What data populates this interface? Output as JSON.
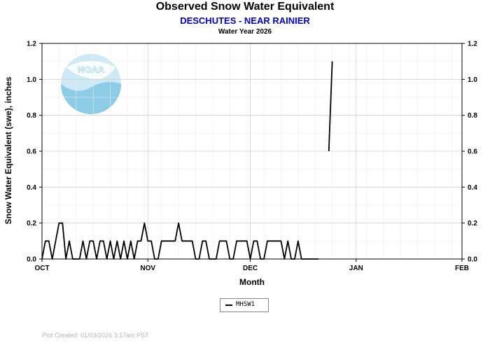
{
  "header": {
    "title": "Observed Snow Water Equivalent",
    "subtitle": "DESCHUTES - NEAR RAINIER",
    "subsubtitle": "Water Year 2026",
    "subtitle_color": "#0000cc"
  },
  "logo": {
    "text": "NOAA",
    "colors": {
      "light": "#cde9f5",
      "mid": "#8ccce6"
    }
  },
  "footer": {
    "text": "Plot Created: 01/03/2026 3:17am PST"
  },
  "chart_data": {
    "type": "line",
    "title": "Observed Snow Water Equivalent",
    "subtitle": "DESCHUTES - NEAR RAINIER",
    "xlabel": "Month",
    "ylabel": "Snow Water Equivalent (swe),  inches",
    "xlim": [
      "2025-10-01",
      "2026-02-01"
    ],
    "ylim": [
      0,
      1.2
    ],
    "x_ticks": [
      {
        "date": "2025-10-01",
        "label": "OCT"
      },
      {
        "date": "2025-11-01",
        "label": "NOV"
      },
      {
        "date": "2025-12-01",
        "label": "DEC"
      },
      {
        "date": "2026-01-01",
        "label": "JAN"
      },
      {
        "date": "2026-02-01",
        "label": "FEB"
      }
    ],
    "y_ticks": [
      "0.0",
      "0.2",
      "0.4",
      "0.6",
      "0.8",
      "1.0",
      "1.2"
    ],
    "grid": true,
    "legend": {
      "position": "bottom-center"
    },
    "series": [
      {
        "name": "MHSW1",
        "color": "#000000",
        "segments": [
          {
            "x": [
              "2025-10-01",
              "2025-10-02",
              "2025-10-03",
              "2025-10-04",
              "2025-10-05",
              "2025-10-06",
              "2025-10-07",
              "2025-10-08",
              "2025-10-09",
              "2025-10-10",
              "2025-10-11",
              "2025-10-12",
              "2025-10-13",
              "2025-10-14",
              "2025-10-15",
              "2025-10-16",
              "2025-10-17",
              "2025-10-18",
              "2025-10-19",
              "2025-10-20",
              "2025-10-21",
              "2025-10-22",
              "2025-10-23",
              "2025-10-24",
              "2025-10-25",
              "2025-10-26",
              "2025-10-27",
              "2025-10-28",
              "2025-10-29",
              "2025-10-30",
              "2025-10-31",
              "2025-11-01",
              "2025-11-02",
              "2025-11-03",
              "2025-11-04",
              "2025-11-05",
              "2025-11-06",
              "2025-11-07",
              "2025-11-08",
              "2025-11-09",
              "2025-11-10",
              "2025-11-11",
              "2025-11-12",
              "2025-11-13",
              "2025-11-14",
              "2025-11-15",
              "2025-11-16",
              "2025-11-17",
              "2025-11-18",
              "2025-11-19",
              "2025-11-20",
              "2025-11-21",
              "2025-11-22",
              "2025-11-23",
              "2025-11-24",
              "2025-11-25",
              "2025-11-26",
              "2025-11-27",
              "2025-11-28",
              "2025-11-29",
              "2025-11-30",
              "2025-12-01",
              "2025-12-02",
              "2025-12-03",
              "2025-12-04",
              "2025-12-05",
              "2025-12-06",
              "2025-12-07",
              "2025-12-08",
              "2025-12-09",
              "2025-12-10",
              "2025-12-11",
              "2025-12-12",
              "2025-12-13",
              "2025-12-14",
              "2025-12-15",
              "2025-12-16",
              "2025-12-17",
              "2025-12-18",
              "2025-12-19",
              "2025-12-20",
              "2025-12-21"
            ],
            "y": [
              0.0,
              0.1,
              0.1,
              0.0,
              0.1,
              0.2,
              0.2,
              0.0,
              0.1,
              0.0,
              0.0,
              0.0,
              0.1,
              0.0,
              0.1,
              0.1,
              0.0,
              0.1,
              0.1,
              0.0,
              0.1,
              0.0,
              0.1,
              0.0,
              0.1,
              0.0,
              0.1,
              0.0,
              0.1,
              0.1,
              0.2,
              0.1,
              0.1,
              0.0,
              0.0,
              0.1,
              0.1,
              0.1,
              0.1,
              0.1,
              0.2,
              0.1,
              0.1,
              0.1,
              0.1,
              0.0,
              0.0,
              0.1,
              0.1,
              0.0,
              0.0,
              0.0,
              0.1,
              0.1,
              0.1,
              0.0,
              0.0,
              0.1,
              0.1,
              0.1,
              0.1,
              0.0,
              0.1,
              0.1,
              0.0,
              0.0,
              0.1,
              0.1,
              0.1,
              0.1,
              0.1,
              0.0,
              0.1,
              0.0,
              0.0,
              0.1,
              0.0,
              0.0,
              0.0,
              0.0,
              0.0,
              0.0
            ]
          },
          {
            "x": [
              "2025-12-24",
              "2025-12-25"
            ],
            "y": [
              0.6,
              1.1
            ]
          }
        ]
      }
    ]
  }
}
